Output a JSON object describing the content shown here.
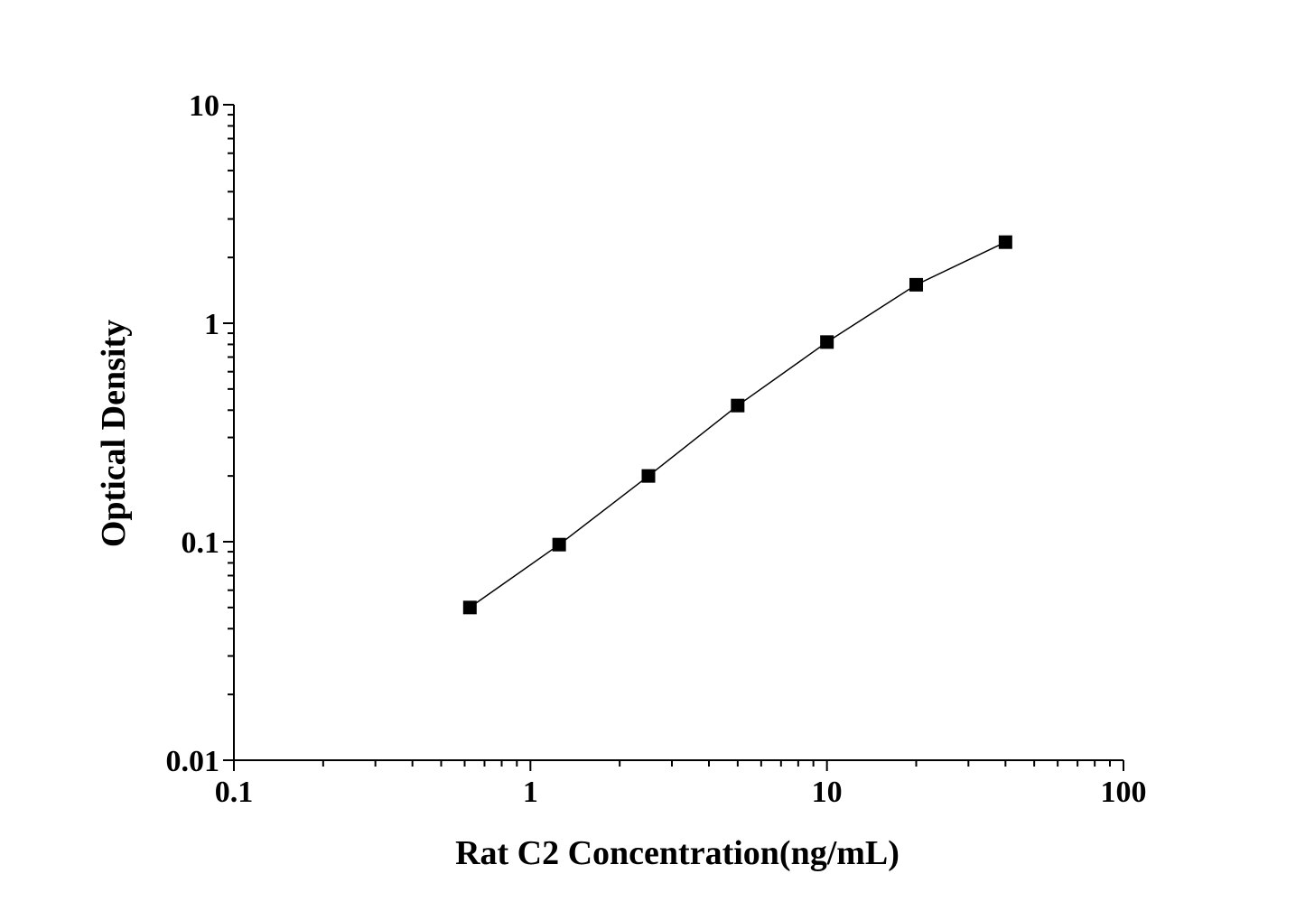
{
  "chart_data": {
    "type": "line",
    "title": "",
    "xlabel": "Rat C2 Concentration(ng/mL)",
    "ylabel": "Optical Density",
    "x_scale": "log",
    "y_scale": "log",
    "xlim": [
      0.1,
      100
    ],
    "ylim": [
      0.01,
      10
    ],
    "grid": false,
    "legend": "none",
    "x_tick_labels": [
      "0.1",
      "1",
      "10",
      "100"
    ],
    "x_tick_values": [
      0.1,
      1,
      10,
      100
    ],
    "y_tick_labels": [
      "0.01",
      "0.1",
      "1",
      "10"
    ],
    "y_tick_values": [
      0.01,
      0.1,
      1,
      10
    ],
    "marker": "square",
    "color": "#000000",
    "series": [
      {
        "x": [
          0.625,
          1.25,
          2.5,
          5,
          10,
          20,
          40
        ],
        "y": [
          0.05,
          0.097,
          0.2,
          0.42,
          0.82,
          1.5,
          2.35
        ]
      }
    ]
  }
}
